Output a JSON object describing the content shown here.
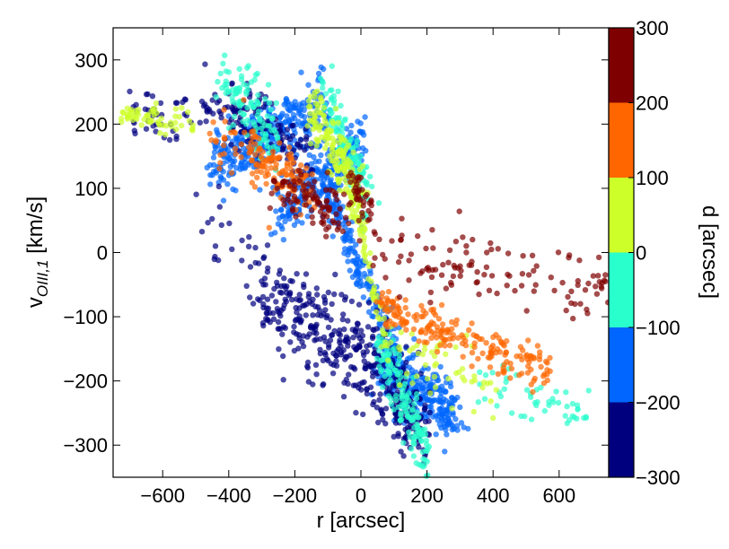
{
  "chart_data": {
    "type": "scatter",
    "title": "",
    "xlabel": "r [arcsec]",
    "ylabel_main": "v",
    "ylabel_sub": "OIII,1",
    "ylabel_unit": " [km/s]",
    "xlim": [
      -750,
      750
    ],
    "ylim": [
      -350,
      350
    ],
    "xticks": [
      -600,
      -400,
      -200,
      0,
      200,
      400,
      600
    ],
    "yticks": [
      -300,
      -200,
      -100,
      0,
      100,
      200,
      300
    ],
    "xtick_labels": [
      "−600",
      "−400",
      "−200",
      "0",
      "200",
      "400",
      "600"
    ],
    "ytick_labels": [
      "−300",
      "−200",
      "−100",
      "0",
      "100",
      "200",
      "300"
    ],
    "grid": false,
    "marker_alpha": 0.7,
    "colorbar": {
      "label": "d [arcsec]",
      "range": [
        -300,
        300
      ],
      "ticks": [
        -300,
        -200,
        -100,
        0,
        100,
        200,
        300
      ],
      "tick_labels": [
        "−300",
        "−200",
        "−100",
        "0",
        "100",
        "200",
        "300"
      ],
      "bins": [
        {
          "from": -300,
          "to": -200,
          "color": "#00007f"
        },
        {
          "from": -200,
          "to": -100,
          "color": "#0066ff"
        },
        {
          "from": -100,
          "to": 0,
          "color": "#29ffcd"
        },
        {
          "from": 0,
          "to": 100,
          "color": "#cdff29"
        },
        {
          "from": 100,
          "to": 200,
          "color": "#ff6600"
        },
        {
          "from": 200,
          "to": 300,
          "color": "#7f0000"
        }
      ]
    },
    "clusters": [
      {
        "name": "receding-arm-upper",
        "bin": 1,
        "n": 320,
        "x": [
          -450,
          -100
        ],
        "y": [
          140,
          230
        ],
        "spread": 25
      },
      {
        "name": "receding-arm-lower",
        "bin": 1,
        "n": 260,
        "x": [
          -250,
          0
        ],
        "y": [
          60,
          170
        ],
        "spread": 25
      },
      {
        "name": "approaching-arm",
        "bin": 1,
        "n": 300,
        "x": [
          50,
          300
        ],
        "y": [
          -170,
          -260
        ],
        "spread": 25
      },
      {
        "name": "central-band",
        "bin": 1,
        "n": 200,
        "x": [
          -120,
          120
        ],
        "y": [
          120,
          -180
        ],
        "spread": 18
      },
      {
        "name": "dark-far-left",
        "bin": 0,
        "n": 80,
        "x": [
          -700,
          -300
        ],
        "y": [
          220,
          210
        ],
        "spread": 22
      },
      {
        "name": "dark-upper-mid",
        "bin": 0,
        "n": 110,
        "x": [
          -400,
          -150
        ],
        "y": [
          220,
          150
        ],
        "spread": 25
      },
      {
        "name": "dark-lower-left",
        "bin": 0,
        "n": 230,
        "x": [
          -300,
          0
        ],
        "y": [
          -60,
          -160
        ],
        "spread": 40
      },
      {
        "name": "dark-lower-right",
        "bin": 0,
        "n": 220,
        "x": [
          0,
          200
        ],
        "y": [
          -150,
          -280
        ],
        "spread": 35
      },
      {
        "name": "dark-scatter-left",
        "bin": 0,
        "n": 25,
        "x": [
          -500,
          -300
        ],
        "y": [
          60,
          -40
        ],
        "spread": 30
      },
      {
        "name": "cyan-upper-left",
        "bin": 2,
        "n": 110,
        "x": [
          -420,
          -250
        ],
        "y": [
          270,
          180
        ],
        "spread": 25
      },
      {
        "name": "cyan-upper-center",
        "bin": 2,
        "n": 130,
        "x": [
          -100,
          20
        ],
        "y": [
          240,
          80
        ],
        "spread": 22
      },
      {
        "name": "cyan-lower-center",
        "bin": 2,
        "n": 150,
        "x": [
          60,
          200
        ],
        "y": [
          -150,
          -320
        ],
        "spread": 22
      },
      {
        "name": "cyan-lower-right",
        "bin": 2,
        "n": 50,
        "x": [
          350,
          700
        ],
        "y": [
          -200,
          -255
        ],
        "spread": 15
      },
      {
        "name": "lime-far-left",
        "bin": 3,
        "n": 60,
        "x": [
          -730,
          -500
        ],
        "y": [
          215,
          205
        ],
        "spread": 12
      },
      {
        "name": "lime-upper-center",
        "bin": 3,
        "n": 140,
        "x": [
          -150,
          0
        ],
        "y": [
          230,
          80
        ],
        "spread": 25
      },
      {
        "name": "lime-central",
        "bin": 3,
        "n": 90,
        "x": [
          -50,
          80
        ],
        "y": [
          150,
          -150
        ],
        "spread": 14
      },
      {
        "name": "lime-right",
        "bin": 3,
        "n": 50,
        "x": [
          100,
          400
        ],
        "y": [
          -150,
          -220
        ],
        "spread": 25
      },
      {
        "name": "orange-left",
        "bin": 4,
        "n": 100,
        "x": [
          -350,
          -150
        ],
        "y": [
          160,
          90
        ],
        "spread": 20
      },
      {
        "name": "orange-right",
        "bin": 4,
        "n": 200,
        "x": [
          50,
          580
        ],
        "y": [
          -80,
          -190
        ],
        "spread": 15
      },
      {
        "name": "orange-scatter",
        "bin": 4,
        "n": 40,
        "x": [
          -450,
          -250
        ],
        "y": [
          200,
          130
        ],
        "spread": 30
      },
      {
        "name": "maroon-left",
        "bin": 5,
        "n": 90,
        "x": [
          -280,
          -50
        ],
        "y": [
          110,
          60
        ],
        "spread": 20
      },
      {
        "name": "maroon-center",
        "bin": 5,
        "n": 40,
        "x": [
          -30,
          30
        ],
        "y": [
          110,
          60
        ],
        "spread": 15
      },
      {
        "name": "maroon-right",
        "bin": 5,
        "n": 120,
        "x": [
          20,
          750
        ],
        "y": [
          0,
          -60
        ],
        "spread": 25
      }
    ]
  }
}
